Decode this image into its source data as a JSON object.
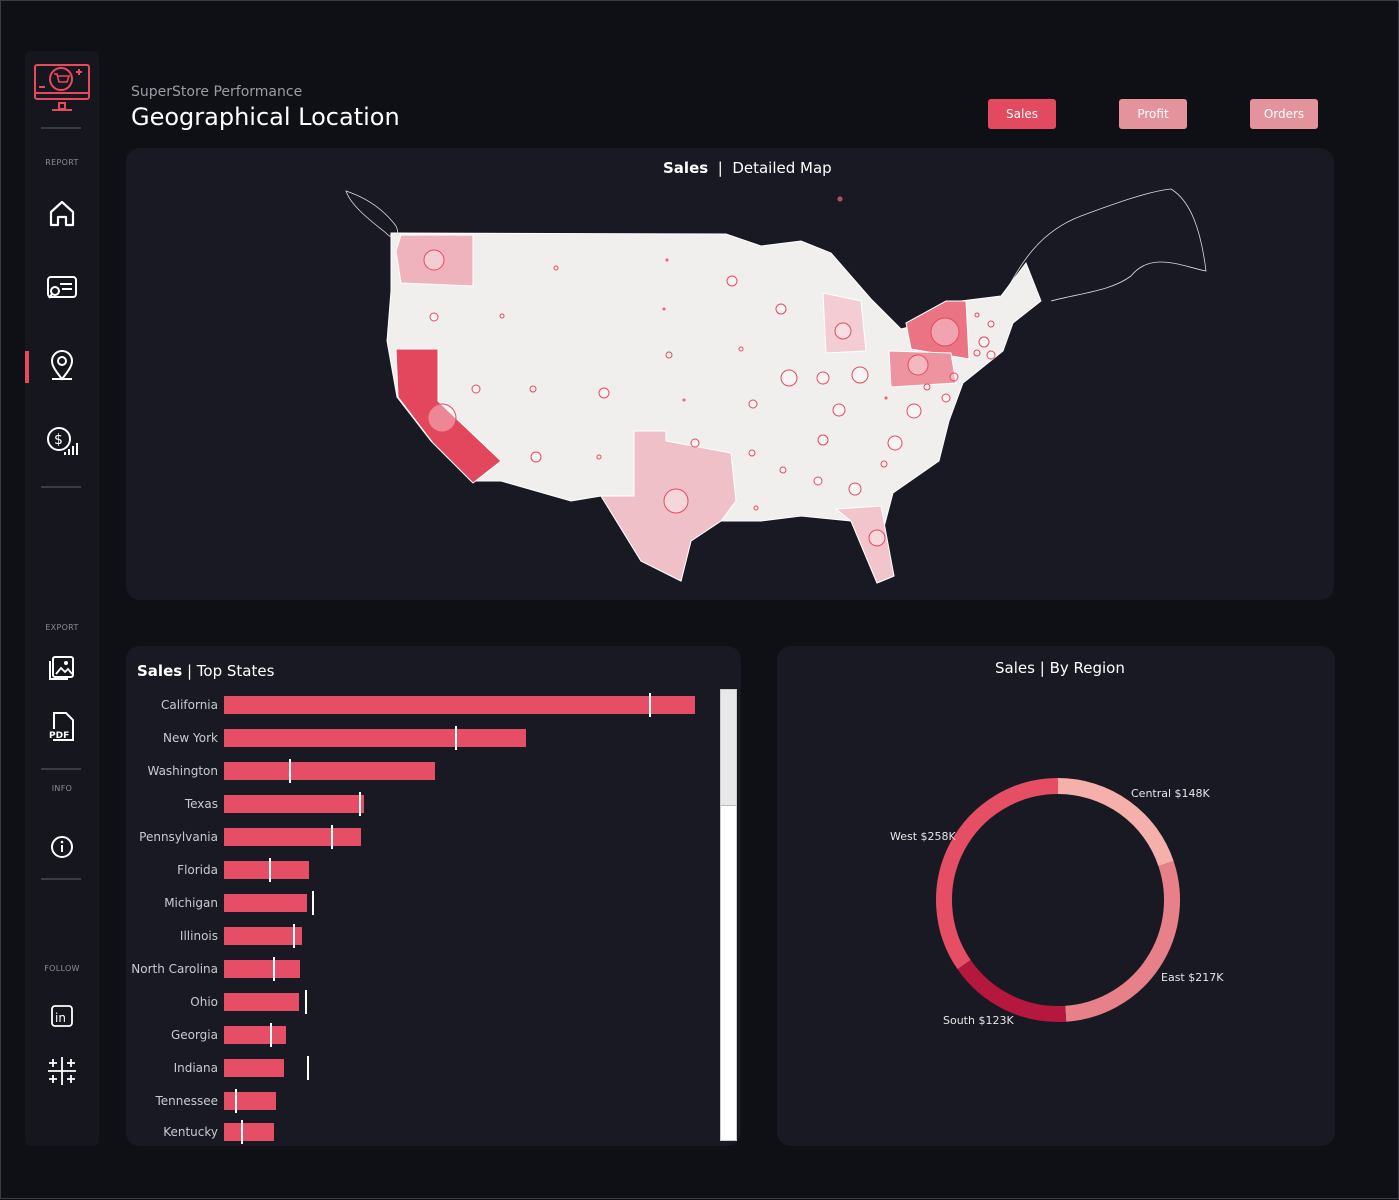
{
  "header": {
    "subtitle": "SuperStore Performance",
    "title": "Geographical Location"
  },
  "buttons": [
    {
      "label": "Sales",
      "color": "#e34a60",
      "active": true
    },
    {
      "label": "Profit",
      "color": "#e4929c"
    },
    {
      "label": "Orders",
      "color": "#e4929c"
    }
  ],
  "sidebar": {
    "sections": {
      "report": "REPORT",
      "export": "EXPORT",
      "info": "INFO",
      "follow": "FOLLOW"
    },
    "items": [
      "home-icon",
      "report-search-icon",
      "map-pin-icon",
      "sales-growth-icon",
      "image-export-icon",
      "pdf-export-icon",
      "info-icon",
      "linkedin-icon",
      "tableau-icon"
    ]
  },
  "map": {
    "title_bold": "Sales",
    "sep": "|",
    "title": "Detailed Map",
    "accent": "#e8495f"
  },
  "top_states": {
    "title_bold": "Sales",
    "sep": "|",
    "title": "Top States"
  },
  "region": {
    "title_bold": "Sales",
    "sep": "|",
    "title": "By Region"
  },
  "chart_data": [
    {
      "type": "bar",
      "title": "Sales | Top States",
      "unit": "K",
      "categories": [
        "California",
        "New York",
        "Washington",
        "Texas",
        "Pennsylvania",
        "Florida",
        "Michigan",
        "Illinois",
        "North Carolina",
        "Ohio",
        "Georgia",
        "Indiana",
        "Tennessee",
        "Kentucky"
      ],
      "values": [
        458,
        294,
        205,
        136,
        133,
        83,
        81,
        76,
        74,
        73,
        60,
        58,
        51,
        49
      ],
      "reference_values": [
        413,
        225,
        63,
        131,
        104,
        44,
        86,
        67,
        48,
        79,
        45,
        81,
        11,
        17
      ],
      "xlim": [
        0,
        458
      ]
    },
    {
      "type": "pie",
      "title": "Sales | By Region",
      "donut": true,
      "categories": [
        "Central",
        "East",
        "South",
        "West"
      ],
      "values": [
        148,
        217,
        123,
        258
      ],
      "labels": [
        "Central $148K",
        "East $217K",
        "South $123K",
        "West $258K"
      ],
      "colors": [
        "#f6b0ac",
        "#e8808a",
        "#b5173e",
        "#e54e64"
      ]
    }
  ]
}
